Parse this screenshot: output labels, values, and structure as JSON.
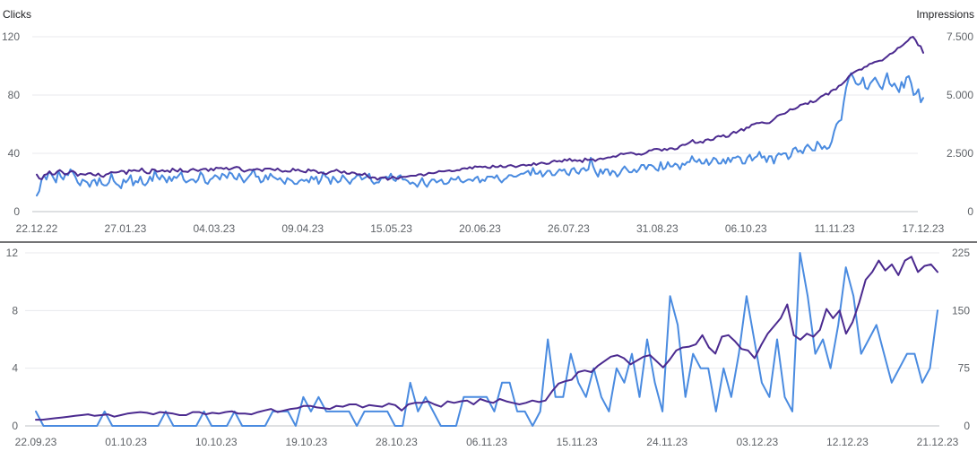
{
  "colors": {
    "clicks": "#4a8be0",
    "impressions": "#4b2a8f",
    "grid": "#e8eaed",
    "baseline": "#bdc1c6",
    "text": "#5f6368"
  },
  "chart_data": [
    {
      "type": "line",
      "title": "",
      "ylabel": "Clicks",
      "y2label": "Impressions",
      "ylim": [
        0,
        120
      ],
      "y2lim": [
        0,
        7500
      ],
      "yticks": [
        "0",
        "40",
        "80",
        "120"
      ],
      "y2ticks": [
        "0",
        "2.500",
        "5.000",
        "7.500"
      ],
      "x_ticks": [
        "22.12.22",
        "27.01.23",
        "04.03.23",
        "09.04.23",
        "15.05.23",
        "20.06.23",
        "26.07.23",
        "31.08.23",
        "06.10.23",
        "11.11.23",
        "17.12.23"
      ],
      "grid": true,
      "series": [
        {
          "key": "clicks",
          "axis": "left",
          "values": [
            11,
            14,
            22,
            25,
            22,
            27,
            26,
            23,
            20,
            28,
            24,
            22,
            26,
            25,
            29,
            27,
            24,
            20,
            18,
            22,
            21,
            20,
            17,
            21,
            22,
            18,
            23,
            19,
            18,
            18,
            20,
            26,
            21,
            19,
            18,
            16,
            22,
            20,
            22,
            25,
            18,
            21,
            20,
            24,
            19,
            18,
            20,
            24,
            21,
            28,
            24,
            22,
            25,
            23,
            20,
            24,
            21,
            24,
            23,
            25,
            27,
            22,
            20,
            21,
            22,
            22,
            20,
            22,
            27,
            25,
            20,
            19,
            22,
            23,
            25,
            24,
            22,
            26,
            25,
            23,
            27,
            26,
            23,
            22,
            26,
            23,
            20,
            22,
            24,
            26,
            29,
            24,
            24,
            20,
            21,
            25,
            22,
            26,
            24,
            23,
            22,
            23,
            21,
            19,
            23,
            22,
            21,
            19,
            19,
            21,
            22,
            21,
            22,
            20,
            24,
            22,
            24,
            19,
            22,
            27,
            24,
            23,
            19,
            24,
            22,
            20,
            21,
            25,
            23,
            21,
            19,
            22,
            23,
            25,
            25,
            22,
            23,
            24,
            26,
            21,
            19,
            20,
            20,
            23,
            23,
            24,
            23,
            26,
            22,
            21,
            24,
            25,
            22,
            22,
            21,
            19,
            20,
            19,
            17,
            20,
            23,
            19,
            17,
            20,
            22,
            22,
            20,
            21,
            22,
            19,
            19,
            20,
            23,
            22,
            22,
            24,
            21,
            20,
            21,
            22,
            22,
            21,
            23,
            24,
            20,
            22,
            21,
            24,
            24,
            24,
            23,
            25,
            22,
            20,
            22,
            23,
            25,
            25,
            24,
            24,
            25,
            26,
            26,
            27,
            28,
            25,
            30,
            26,
            26,
            28,
            24,
            26,
            28,
            28,
            25,
            25,
            27,
            29,
            28,
            29,
            26,
            25,
            29,
            30,
            27,
            26,
            29,
            30,
            28,
            29,
            37,
            31,
            27,
            24,
            29,
            26,
            29,
            29,
            25,
            28,
            27,
            24,
            26,
            29,
            31,
            29,
            27,
            27,
            29,
            27,
            29,
            32,
            32,
            29,
            32,
            32,
            31,
            29,
            28,
            34,
            29,
            30,
            34,
            31,
            31,
            33,
            32,
            29,
            33,
            32,
            34,
            34,
            38,
            35,
            34,
            36,
            33,
            33,
            36,
            32,
            34,
            37,
            36,
            33,
            33,
            36,
            33,
            37,
            34,
            37,
            37,
            38,
            37,
            33,
            33,
            37,
            39,
            35,
            37,
            38,
            41,
            37,
            38,
            34,
            38,
            38,
            33,
            38,
            40,
            39,
            40,
            40,
            36,
            38,
            43,
            44,
            41,
            42,
            40,
            44,
            46,
            44,
            42,
            42,
            48,
            46,
            43,
            45,
            43,
            44,
            48,
            55,
            60,
            62,
            63,
            75,
            85,
            91,
            95,
            92,
            88,
            87,
            88,
            92,
            85,
            84,
            88,
            90,
            92,
            89,
            86,
            84,
            90,
            95,
            88,
            86,
            88,
            85,
            82,
            89,
            85,
            92,
            93,
            88,
            80,
            81,
            84,
            75,
            78
          ]
        },
        {
          "key": "impressions",
          "axis": "right",
          "values": [
            1587,
            1416,
            1389,
            1577,
            1603,
            1726,
            1591,
            1595,
            1720,
            1785,
            1695,
            1589,
            1620,
            1711,
            1746,
            1672,
            1534,
            1614,
            1600,
            1581,
            1640,
            1654,
            1576,
            1545,
            1633,
            1526,
            1489,
            1592,
            1625,
            1697,
            1676,
            1676,
            1700,
            1751,
            1734,
            1611,
            1781,
            1743,
            1779,
            1749,
            1744,
            1854,
            1715,
            1646,
            1640,
            1817,
            1799,
            1711,
            1733,
            1775,
            1724,
            1761,
            1690,
            1845,
            1767,
            1718,
            1840,
            1722,
            1716,
            1695,
            1793,
            1834,
            1783,
            1740,
            1798,
            1830,
            1838,
            1738,
            1848,
            1766,
            1886,
            1866,
            1875,
            1829,
            1886,
            1798,
            1837,
            1889,
            1919,
            1895,
            1773,
            1713,
            1757,
            1797,
            1783,
            1805,
            1830,
            1800,
            1736,
            1842,
            1846,
            1845,
            1809,
            1772,
            1849,
            1764,
            1706,
            1743,
            1715,
            1715,
            1844,
            1761,
            1802,
            1744,
            1707,
            1680,
            1814,
            1751,
            1782,
            1737,
            1649,
            1683,
            1639,
            1604,
            1676,
            1723,
            1742,
            1800,
            1726,
            1666,
            1728,
            1629,
            1621,
            1682,
            1665,
            1596,
            1600,
            1574,
            1643,
            1536,
            1433,
            1468,
            1462,
            1367,
            1448,
            1464,
            1474,
            1360,
            1423,
            1503,
            1438,
            1403,
            1481,
            1492,
            1488,
            1516,
            1540,
            1539,
            1538,
            1597,
            1608,
            1545,
            1592,
            1665,
            1650,
            1645,
            1676,
            1737,
            1727,
            1727,
            1749,
            1771,
            1729,
            1738,
            1776,
            1772,
            1848,
            1862,
            1840,
            1906,
            1846,
            1944,
            1919,
            1936,
            1908,
            1933,
            1881,
            1871,
            1978,
            1915,
            1916,
            1980,
            1908,
            1908,
            1972,
            1998,
            1955,
            1907,
            1950,
            1991,
            2011,
            1974,
            2003,
            1984,
            2082,
            2005,
            2063,
            2103,
            2076,
            2041,
            2059,
            2141,
            2190,
            2148,
            2178,
            2139,
            2239,
            2188,
            2269,
            2170,
            2214,
            2171,
            2205,
            2125,
            2282,
            2210,
            2231,
            2249,
            2167,
            2244,
            2279,
            2252,
            2293,
            2324,
            2326,
            2375,
            2350,
            2421,
            2492,
            2465,
            2491,
            2510,
            2527,
            2499,
            2441,
            2470,
            2440,
            2475,
            2531,
            2623,
            2631,
            2684,
            2691,
            2672,
            2611,
            2696,
            2641,
            2715,
            2714,
            2671,
            2691,
            2809,
            2866,
            2860,
            2912,
            2979,
            3074,
            2948,
            2954,
            3000,
            2955,
            3078,
            3104,
            3063,
            3082,
            3195,
            3245,
            3220,
            3280,
            3195,
            3215,
            3340,
            3428,
            3378,
            3463,
            3547,
            3478,
            3609,
            3599,
            3728,
            3755,
            3800,
            3800,
            3832,
            3803,
            3788,
            3800,
            3890,
            3990,
            4103,
            4153,
            4179,
            4204,
            4281,
            4391,
            4382,
            4407,
            4471,
            4575,
            4605,
            4641,
            4615,
            4744,
            4690,
            4726,
            4828,
            4930,
            4986,
            5060,
            5016,
            5175,
            5236,
            5242,
            5393,
            5436,
            5537,
            5648,
            5807,
            5906,
            5978,
            6042,
            6093,
            6094,
            6200,
            6226,
            6334,
            6359,
            6417,
            6443,
            6475,
            6481,
            6572,
            6660,
            6761,
            6796,
            6879,
            7016,
            7052,
            7135,
            7239,
            7328,
            7456,
            7500,
            7362,
            7138,
            7096,
            6813
          ]
        }
      ]
    },
    {
      "type": "line",
      "title": "",
      "ylabel": "",
      "y2label": "",
      "ylim": [
        0,
        12
      ],
      "y2lim": [
        0,
        225
      ],
      "yticks": [
        "0",
        "4",
        "8",
        "12"
      ],
      "y2ticks": [
        "0",
        "75",
        "150",
        "225"
      ],
      "x_ticks": [
        "22.09.23",
        "01.10.23",
        "10.10.23",
        "19.10.23",
        "28.10.23",
        "06.11.23",
        "15.11.23",
        "24.11.23",
        "03.12.23",
        "12.12.23",
        "21.12.23"
      ],
      "grid": true,
      "series": [
        {
          "key": "clicks",
          "axis": "left",
          "values": [
            1,
            0,
            0,
            0,
            0,
            0,
            0,
            0,
            0,
            1,
            0,
            0,
            0,
            0,
            0,
            0,
            0,
            1,
            0,
            0,
            0,
            0,
            1,
            0,
            0,
            0,
            1,
            0,
            0,
            0,
            0,
            1,
            1,
            1,
            0,
            2,
            1,
            2,
            1,
            1,
            1,
            1,
            0,
            1,
            1,
            1,
            1,
            0,
            0,
            3,
            1,
            2,
            1,
            0,
            0,
            0,
            2,
            2,
            2,
            2,
            1,
            3,
            3,
            1,
            1,
            0,
            1,
            6,
            2,
            2,
            5,
            3,
            2,
            4,
            2,
            1,
            4,
            3,
            5,
            2,
            6,
            3,
            1,
            9,
            7,
            2,
            5,
            4,
            4,
            1,
            4,
            2,
            5,
            9,
            6,
            3,
            2,
            6,
            2,
            1,
            12,
            9,
            5,
            6,
            4,
            7,
            11,
            9,
            5,
            6,
            7,
            5,
            3,
            4,
            5,
            5,
            3,
            4,
            8
          ]
        },
        {
          "key": "impressions",
          "axis": "right",
          "values": [
            8,
            8,
            9,
            10,
            11,
            12,
            13,
            14,
            15,
            13,
            14,
            15,
            12,
            14,
            16,
            17,
            18,
            17,
            15,
            18,
            17,
            16,
            14,
            14,
            18,
            18,
            15,
            17,
            16,
            18,
            19,
            16,
            16,
            15,
            18,
            20,
            22,
            18,
            20,
            22,
            23,
            26,
            26,
            24,
            23,
            22,
            26,
            25,
            28,
            28,
            24,
            27,
            26,
            25,
            29,
            27,
            20,
            28,
            30,
            30,
            32,
            28,
            25,
            32,
            30,
            32,
            33,
            28,
            35,
            32,
            30,
            35,
            32,
            30,
            28,
            30,
            33,
            31,
            33,
            45,
            55,
            58,
            60,
            70,
            72,
            70,
            78,
            84,
            90,
            92,
            88,
            80,
            85,
            90,
            92,
            84,
            76,
            86,
            98,
            102,
            103,
            106,
            118,
            102,
            94,
            116,
            118,
            110,
            100,
            98,
            88,
            105,
            120,
            130,
            140,
            158,
            118,
            112,
            120,
            116,
            125,
            152,
            140,
            150,
            120,
            135,
            160,
            190,
            200,
            215,
            202,
            210,
            196,
            215,
            220,
            200,
            208,
            210,
            200
          ]
        }
      ]
    }
  ]
}
